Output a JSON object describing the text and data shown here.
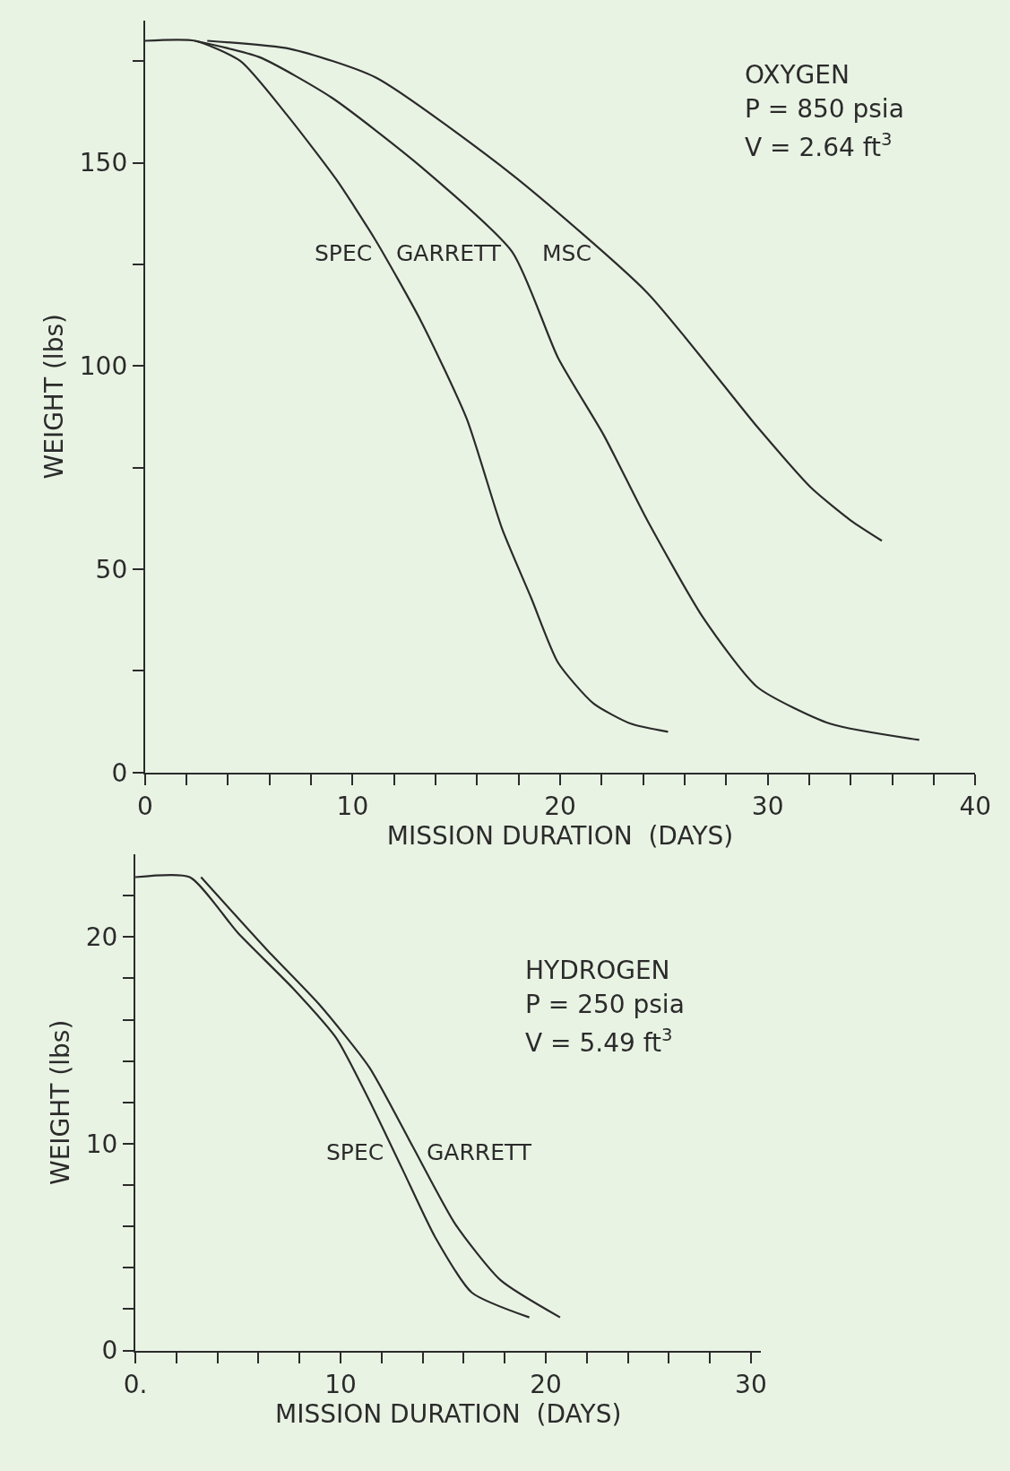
{
  "chart_data": [
    {
      "type": "line",
      "xlabel": "MISSION DURATION  (DAYS)",
      "ylabel": "WEIGHT (lbs)",
      "annotations": [
        "OXYGEN",
        "P = 850 psia",
        "V = 2.64 ft$^{3}$"
      ],
      "xlim": [
        0,
        40
      ],
      "xticks": [
        0,
        {
          "value": 2,
          "label": null
        },
        {
          "value": 4,
          "label": null
        },
        {
          "value": 6,
          "label": null
        },
        {
          "value": 8,
          "label": null
        },
        10,
        {
          "value": 12,
          "label": null
        },
        {
          "value": 14,
          "label": null
        },
        {
          "value": 16,
          "label": null
        },
        {
          "value": 18,
          "label": null
        },
        20,
        {
          "value": 22,
          "label": null
        },
        {
          "value": 24,
          "label": null
        },
        {
          "value": 26,
          "label": null
        },
        {
          "value": 28,
          "label": null
        },
        30,
        {
          "value": 32,
          "label": null
        },
        {
          "value": 34,
          "label": null
        },
        {
          "value": 36,
          "label": null
        },
        {
          "value": 38,
          "label": null
        },
        40
      ],
      "ylim": [
        0,
        185
      ],
      "yticks": [
        0,
        {
          "value": 25,
          "label": null
        },
        50,
        {
          "value": 75,
          "label": null
        },
        100,
        {
          "value": 125,
          "label": null
        },
        150,
        {
          "value": 175,
          "label": null
        }
      ],
      "grid": false,
      "marker": "none",
      "line_style": "solid",
      "series": [
        {
          "name": "SPEC",
          "color": "#2b2b2b",
          "x": [
            0,
            2.4,
            4.6,
            6.8,
            9.2,
            11.1,
            13.3,
            15.5,
            17.2,
            18.6,
            19.9,
            21.6,
            23.4,
            25.2
          ],
          "values": [
            180,
            180,
            175,
            162,
            146,
            131,
            111,
            87,
            60,
            43,
            27,
            17,
            12,
            10
          ]
        },
        {
          "name": "GARRETT",
          "color": "#2b2b2b",
          "x": [
            2.4,
            5.5,
            9.0,
            13.3,
            17.7,
            19.9,
            22.1,
            24.2,
            26.9,
            29.5,
            33,
            37.3
          ],
          "values": [
            180,
            176,
            166,
            149,
            128,
            102,
            83,
            62,
            38,
            21,
            12,
            8
          ]
        },
        {
          "name": "MSC",
          "color": "#2b2b2b",
          "x": [
            3.0,
            7.0,
            11.1,
            17.7,
            24.2,
            29.5,
            32.1,
            34.0,
            35.5
          ],
          "values": [
            180,
            178,
            171,
            147,
            118,
            85,
            70,
            62,
            57
          ]
        }
      ]
    },
    {
      "type": "line",
      "xlabel": "MISSION DURATION  (DAYS)",
      "ylabel": "WEIGHT (lbs)",
      "annotations": [
        "HYDROGEN",
        "P = 250 psia",
        "V = 5.49 ft$^{3}$"
      ],
      "xlim": [
        0,
        30.5
      ],
      "xticks": [
        {
          "value": 0,
          "label": "0."
        },
        {
          "value": 2,
          "label": null
        },
        {
          "value": 4,
          "label": null
        },
        {
          "value": 6,
          "label": null
        },
        {
          "value": 8,
          "label": null
        },
        10,
        {
          "value": 12,
          "label": null
        },
        {
          "value": 14,
          "label": null
        },
        {
          "value": 16,
          "label": null
        },
        {
          "value": 18,
          "label": null
        },
        20,
        {
          "value": 22,
          "label": null
        },
        {
          "value": 24,
          "label": null
        },
        {
          "value": 26,
          "label": null
        },
        {
          "value": 28,
          "label": null
        },
        30
      ],
      "ylim": [
        0,
        24
      ],
      "yticks": [
        0,
        {
          "value": 2,
          "label": null
        },
        {
          "value": 4,
          "label": null
        },
        {
          "value": 6,
          "label": null
        },
        {
          "value": 8,
          "label": null
        },
        10,
        {
          "value": 12,
          "label": null
        },
        {
          "value": 14,
          "label": null
        },
        {
          "value": 16,
          "label": null
        },
        {
          "value": 18,
          "label": null
        },
        20,
        {
          "value": 22,
          "label": null
        }
      ],
      "grid": false,
      "marker": "none",
      "line_style": "solid",
      "series": [
        {
          "name": "SPEC",
          "color": "#2b2b2b",
          "x": [
            0,
            2.65,
            5.0,
            7.7,
            9.8,
            11.4,
            13.0,
            14.6,
            16.4,
            19.2
          ],
          "values": [
            22.9,
            22.9,
            20.2,
            17.5,
            15.1,
            12.1,
            8.8,
            5.5,
            2.8,
            1.6
          ]
        },
        {
          "name": "GARRETT",
          "color": "#2b2b2b",
          "x": [
            3.2,
            6.4,
            9.0,
            11.4,
            13.5,
            15.6,
            17.8,
            20.7
          ],
          "values": [
            22.9,
            19.4,
            16.7,
            13.7,
            9.9,
            6.1,
            3.4,
            1.6
          ]
        }
      ]
    }
  ]
}
